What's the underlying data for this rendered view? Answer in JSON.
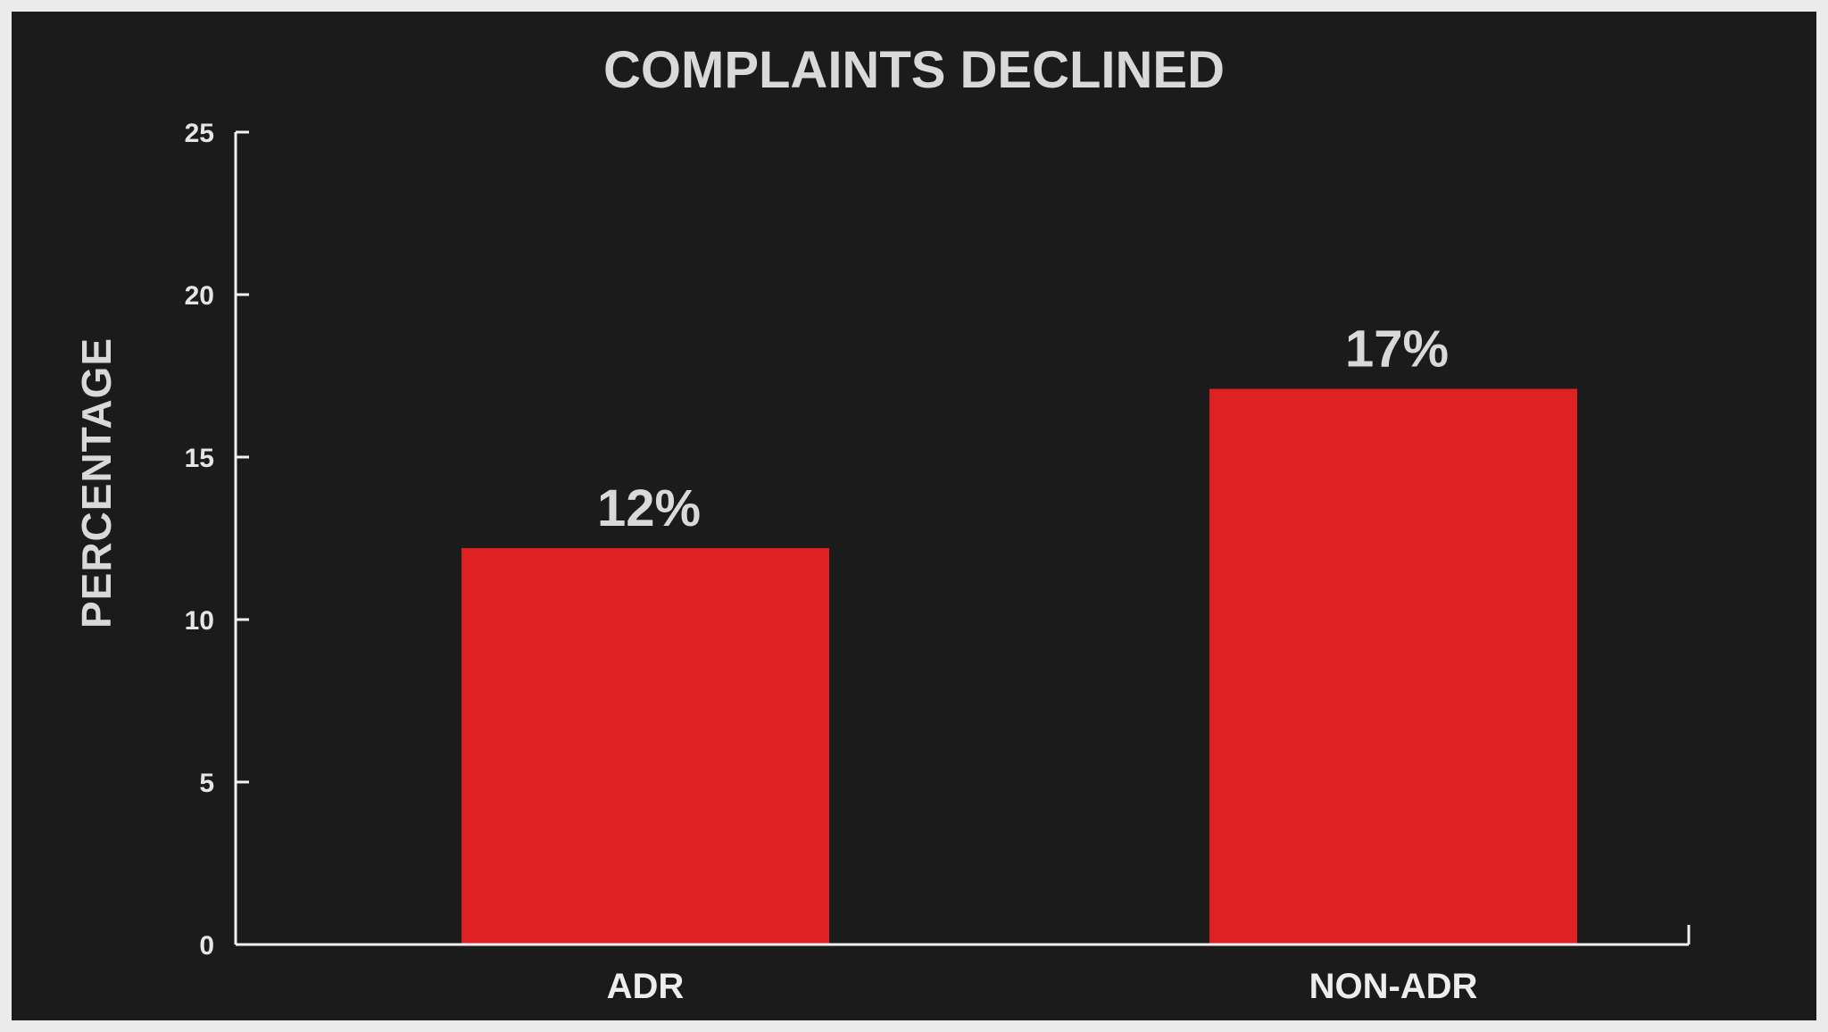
{
  "chart_data": {
    "type": "bar",
    "title": "COMPLAINTS DECLINED",
    "xlabel": "",
    "ylabel": "PERCENTAGE",
    "categories": [
      "ADR",
      "NON-ADR"
    ],
    "values": [
      12.2,
      17.1
    ],
    "data_labels": [
      "12%",
      "17%"
    ],
    "yticks": [
      "0",
      "5",
      "10",
      "15",
      "20",
      "25"
    ],
    "ylim": [
      0,
      25
    ],
    "grid": false,
    "legend": "none",
    "colors": {
      "background": "#1b1b1b",
      "border": "#ececec",
      "bar": "#de2224",
      "axis": "#f2f2f2",
      "text": "#d9d9d9"
    }
  }
}
